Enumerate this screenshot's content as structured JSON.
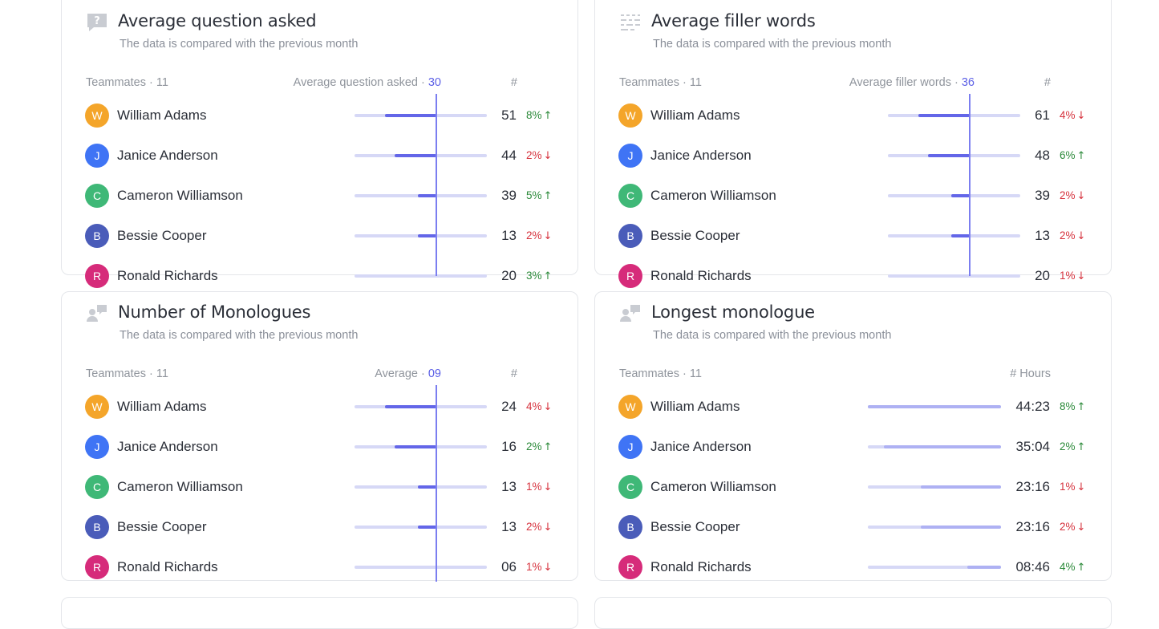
{
  "colors": {
    "accent": "#5b5fe6",
    "bar": "#6366e8",
    "bar_light": "#aeb1f3",
    "track": "#d6d8f6",
    "up": "#2c8a3a",
    "down": "#d6323d"
  },
  "avatar_colors": {
    "W": "#f4a52a",
    "J": "#3f74f5",
    "C": "#3fb877",
    "B": "#4a5cb9",
    "R": "#d62b7a"
  },
  "cards": [
    {
      "icon": "question-bubble-icon",
      "title": "Average question asked",
      "subtitle": "The data is compared with the previous month",
      "teammates_label": "Teammates · 11",
      "metric_label": "Average question asked · ",
      "metric_value": "30",
      "value_header": "#",
      "rows": [
        {
          "initial": "W",
          "name": "William Adams",
          "value": "51",
          "change": "8%",
          "dir": "up",
          "bar": 0.62
        },
        {
          "initial": "J",
          "name": "Janice Anderson",
          "value": "44",
          "change": "2%",
          "dir": "down",
          "bar": 0.5
        },
        {
          "initial": "C",
          "name": "Cameron Williamson",
          "value": "39",
          "change": "5%",
          "dir": "up",
          "bar": 0.22
        },
        {
          "initial": "B",
          "name": "Bessie Cooper",
          "value": "13",
          "change": "2%",
          "dir": "down",
          "bar": 0.22
        },
        {
          "initial": "R",
          "name": "Ronald Richards",
          "value": "20",
          "change": "3%",
          "dir": "up",
          "bar": 0.0
        }
      ]
    },
    {
      "icon": "filler-words-icon",
      "title": "Average filler words",
      "subtitle": "The data is compared with the previous month",
      "teammates_label": "Teammates · 11",
      "metric_label": "Average filler words · ",
      "metric_value": "36",
      "value_header": "#",
      "rows": [
        {
          "initial": "W",
          "name": "William Adams",
          "value": "61",
          "change": "4%",
          "dir": "down",
          "bar": 0.62
        },
        {
          "initial": "J",
          "name": "Janice Anderson",
          "value": "48",
          "change": "6%",
          "dir": "up",
          "bar": 0.5
        },
        {
          "initial": "C",
          "name": "Cameron Williamson",
          "value": "39",
          "change": "2%",
          "dir": "down",
          "bar": 0.22
        },
        {
          "initial": "B",
          "name": "Bessie Cooper",
          "value": "13",
          "change": "2%",
          "dir": "down",
          "bar": 0.22
        },
        {
          "initial": "R",
          "name": "Ronald Richards",
          "value": "20",
          "change": "1%",
          "dir": "down",
          "bar": 0.0
        }
      ]
    },
    {
      "icon": "monologue-icon",
      "title": "Number of Monologues",
      "subtitle": "The data is compared with the previous month",
      "teammates_label": "Teammates · 11",
      "metric_label": "Average · ",
      "metric_value": "09",
      "value_header": "#",
      "rows": [
        {
          "initial": "W",
          "name": "William Adams",
          "value": "24",
          "change": "4%",
          "dir": "down",
          "bar": 0.62
        },
        {
          "initial": "J",
          "name": "Janice Anderson",
          "value": "16",
          "change": "2%",
          "dir": "up",
          "bar": 0.5
        },
        {
          "initial": "C",
          "name": "Cameron Williamson",
          "value": "13",
          "change": "1%",
          "dir": "down",
          "bar": 0.22
        },
        {
          "initial": "B",
          "name": "Bessie Cooper",
          "value": "13",
          "change": "2%",
          "dir": "down",
          "bar": 0.22
        },
        {
          "initial": "R",
          "name": "Ronald Richards",
          "value": "06",
          "change": "1%",
          "dir": "down",
          "bar": 0.0
        }
      ]
    },
    {
      "icon": "monologue-icon",
      "title": "Longest monologue",
      "subtitle": "The data is compared with the previous month",
      "teammates_label": "Teammates · 11",
      "metric_label": "",
      "metric_value": "",
      "value_header": "# Hours",
      "rows": [
        {
          "initial": "W",
          "name": "William Adams",
          "value": "44:23",
          "change": "8%",
          "dir": "up",
          "bar": 1.0
        },
        {
          "initial": "J",
          "name": "Janice Anderson",
          "value": "35:04",
          "change": "2%",
          "dir": "up",
          "bar": 0.88
        },
        {
          "initial": "C",
          "name": "Cameron Williamson",
          "value": "23:16",
          "change": "1%",
          "dir": "down",
          "bar": 0.6
        },
        {
          "initial": "B",
          "name": "Bessie Cooper",
          "value": "23:16",
          "change": "2%",
          "dir": "down",
          "bar": 0.6
        },
        {
          "initial": "R",
          "name": "Ronald Richards",
          "value": "08:46",
          "change": "4%",
          "dir": "up",
          "bar": 0.25
        }
      ]
    }
  ]
}
